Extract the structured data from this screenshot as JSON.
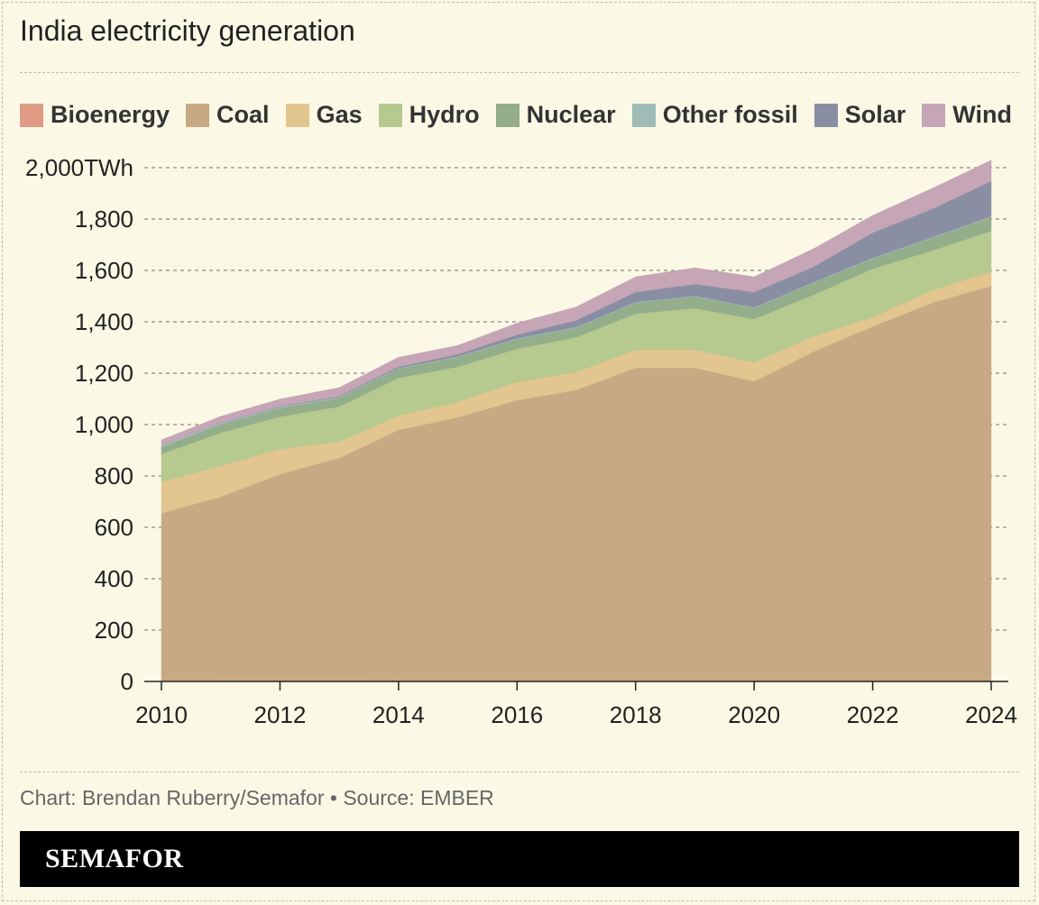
{
  "chart_data": {
    "type": "area",
    "stacked": true,
    "title": "India electricity generation",
    "xlabel": "",
    "ylabel": "",
    "y_unit": "TWh",
    "ylim": [
      0,
      2000
    ],
    "xlim": [
      2010,
      2024
    ],
    "yticks": [
      "0",
      "200",
      "400",
      "600",
      "800",
      "1,000",
      "1,200",
      "1,400",
      "1,600",
      "1,800",
      "2,000TWh"
    ],
    "xticks": [
      "2010",
      "2012",
      "2014",
      "2016",
      "2018",
      "2020",
      "2022",
      "2024"
    ],
    "grid": "horizontal dashed",
    "legend_placement": "top",
    "x": [
      2010,
      2011,
      2012,
      2013,
      2014,
      2015,
      2016,
      2017,
      2018,
      2019,
      2020,
      2021,
      2022,
      2023,
      2024
    ],
    "series": [
      {
        "name": "Bioenergy",
        "color": "#e09b86",
        "values": [
          3,
          3,
          4,
          4,
          5,
          5,
          5,
          5,
          5,
          5,
          5,
          5,
          5,
          5,
          5
        ]
      },
      {
        "name": "Coal",
        "color": "#c8a983",
        "values": [
          652,
          716,
          803,
          866,
          974,
          1023,
          1090,
          1130,
          1216,
          1216,
          1163,
          1279,
          1377,
          1469,
          1535
        ]
      },
      {
        "name": "Gas",
        "color": "#e3c58f",
        "values": [
          122,
          120,
          98,
          63,
          56,
          60,
          70,
          70,
          70,
          70,
          74,
          60,
          36,
          49,
          56
        ]
      },
      {
        "name": "Hydro",
        "color": "#b6c98f",
        "values": [
          109,
          129,
          126,
          137,
          147,
          137,
          130,
          135,
          141,
          162,
          169,
          161,
          189,
          154,
          158
        ]
      },
      {
        "name": "Nuclear",
        "color": "#94ad8a",
        "values": [
          26,
          33,
          33,
          34,
          35,
          38,
          38,
          37,
          42,
          45,
          42,
          46,
          39,
          49,
          54
        ]
      },
      {
        "name": "Other fossil",
        "color": "#9fbcb8",
        "values": [
          8,
          5,
          5,
          4,
          3,
          3,
          3,
          3,
          3,
          3,
          3,
          3,
          3,
          3,
          3
        ]
      },
      {
        "name": "Solar",
        "color": "#8a8ea3",
        "values": [
          0,
          1,
          2,
          3,
          5,
          8,
          14,
          26,
          39,
          46,
          60,
          60,
          98,
          110,
          137
        ]
      },
      {
        "name": "Wind",
        "color": "#c6a5b6",
        "values": [
          20,
          25,
          28,
          33,
          37,
          34,
          45,
          52,
          59,
          63,
          59,
          70,
          67,
          80,
          81
        ]
      }
    ]
  },
  "credit": "Chart: Brendan Ruberry/Semafor • Source: EMBER",
  "logo": "SEMAFOR"
}
